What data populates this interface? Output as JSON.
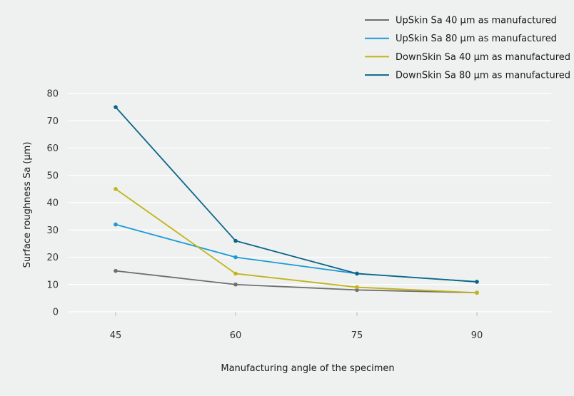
{
  "chart_data": {
    "type": "line",
    "title": "",
    "xlabel": "Manufacturing angle of the specimen",
    "ylabel": "Surface roughness Sa (µm)",
    "x": [
      45,
      60,
      75,
      90
    ],
    "x_tick_labels": [
      "45",
      "60",
      "75",
      "90"
    ],
    "ylim": [
      0,
      80
    ],
    "y_ticks": [
      0,
      10,
      20,
      30,
      40,
      50,
      60,
      70,
      80
    ],
    "grid": "horizontal",
    "legend_position": "top-right",
    "series": [
      {
        "name": "UpSkin Sa 40 µm as manufactured",
        "color": "#6e6e6e",
        "values": [
          15,
          10,
          8,
          7
        ]
      },
      {
        "name": "UpSkin Sa 80 µm as manufactured",
        "color": "#1a9ad6",
        "values": [
          32,
          20,
          14,
          11
        ]
      },
      {
        "name": "DownSkin Sa 40 µm as manufactured",
        "color": "#c2b31b",
        "values": [
          45,
          14,
          9,
          7
        ]
      },
      {
        "name": "DownSkin Sa 80 µm as manufactured",
        "color": "#0c6688",
        "values": [
          75,
          26,
          14,
          11
        ]
      }
    ]
  }
}
